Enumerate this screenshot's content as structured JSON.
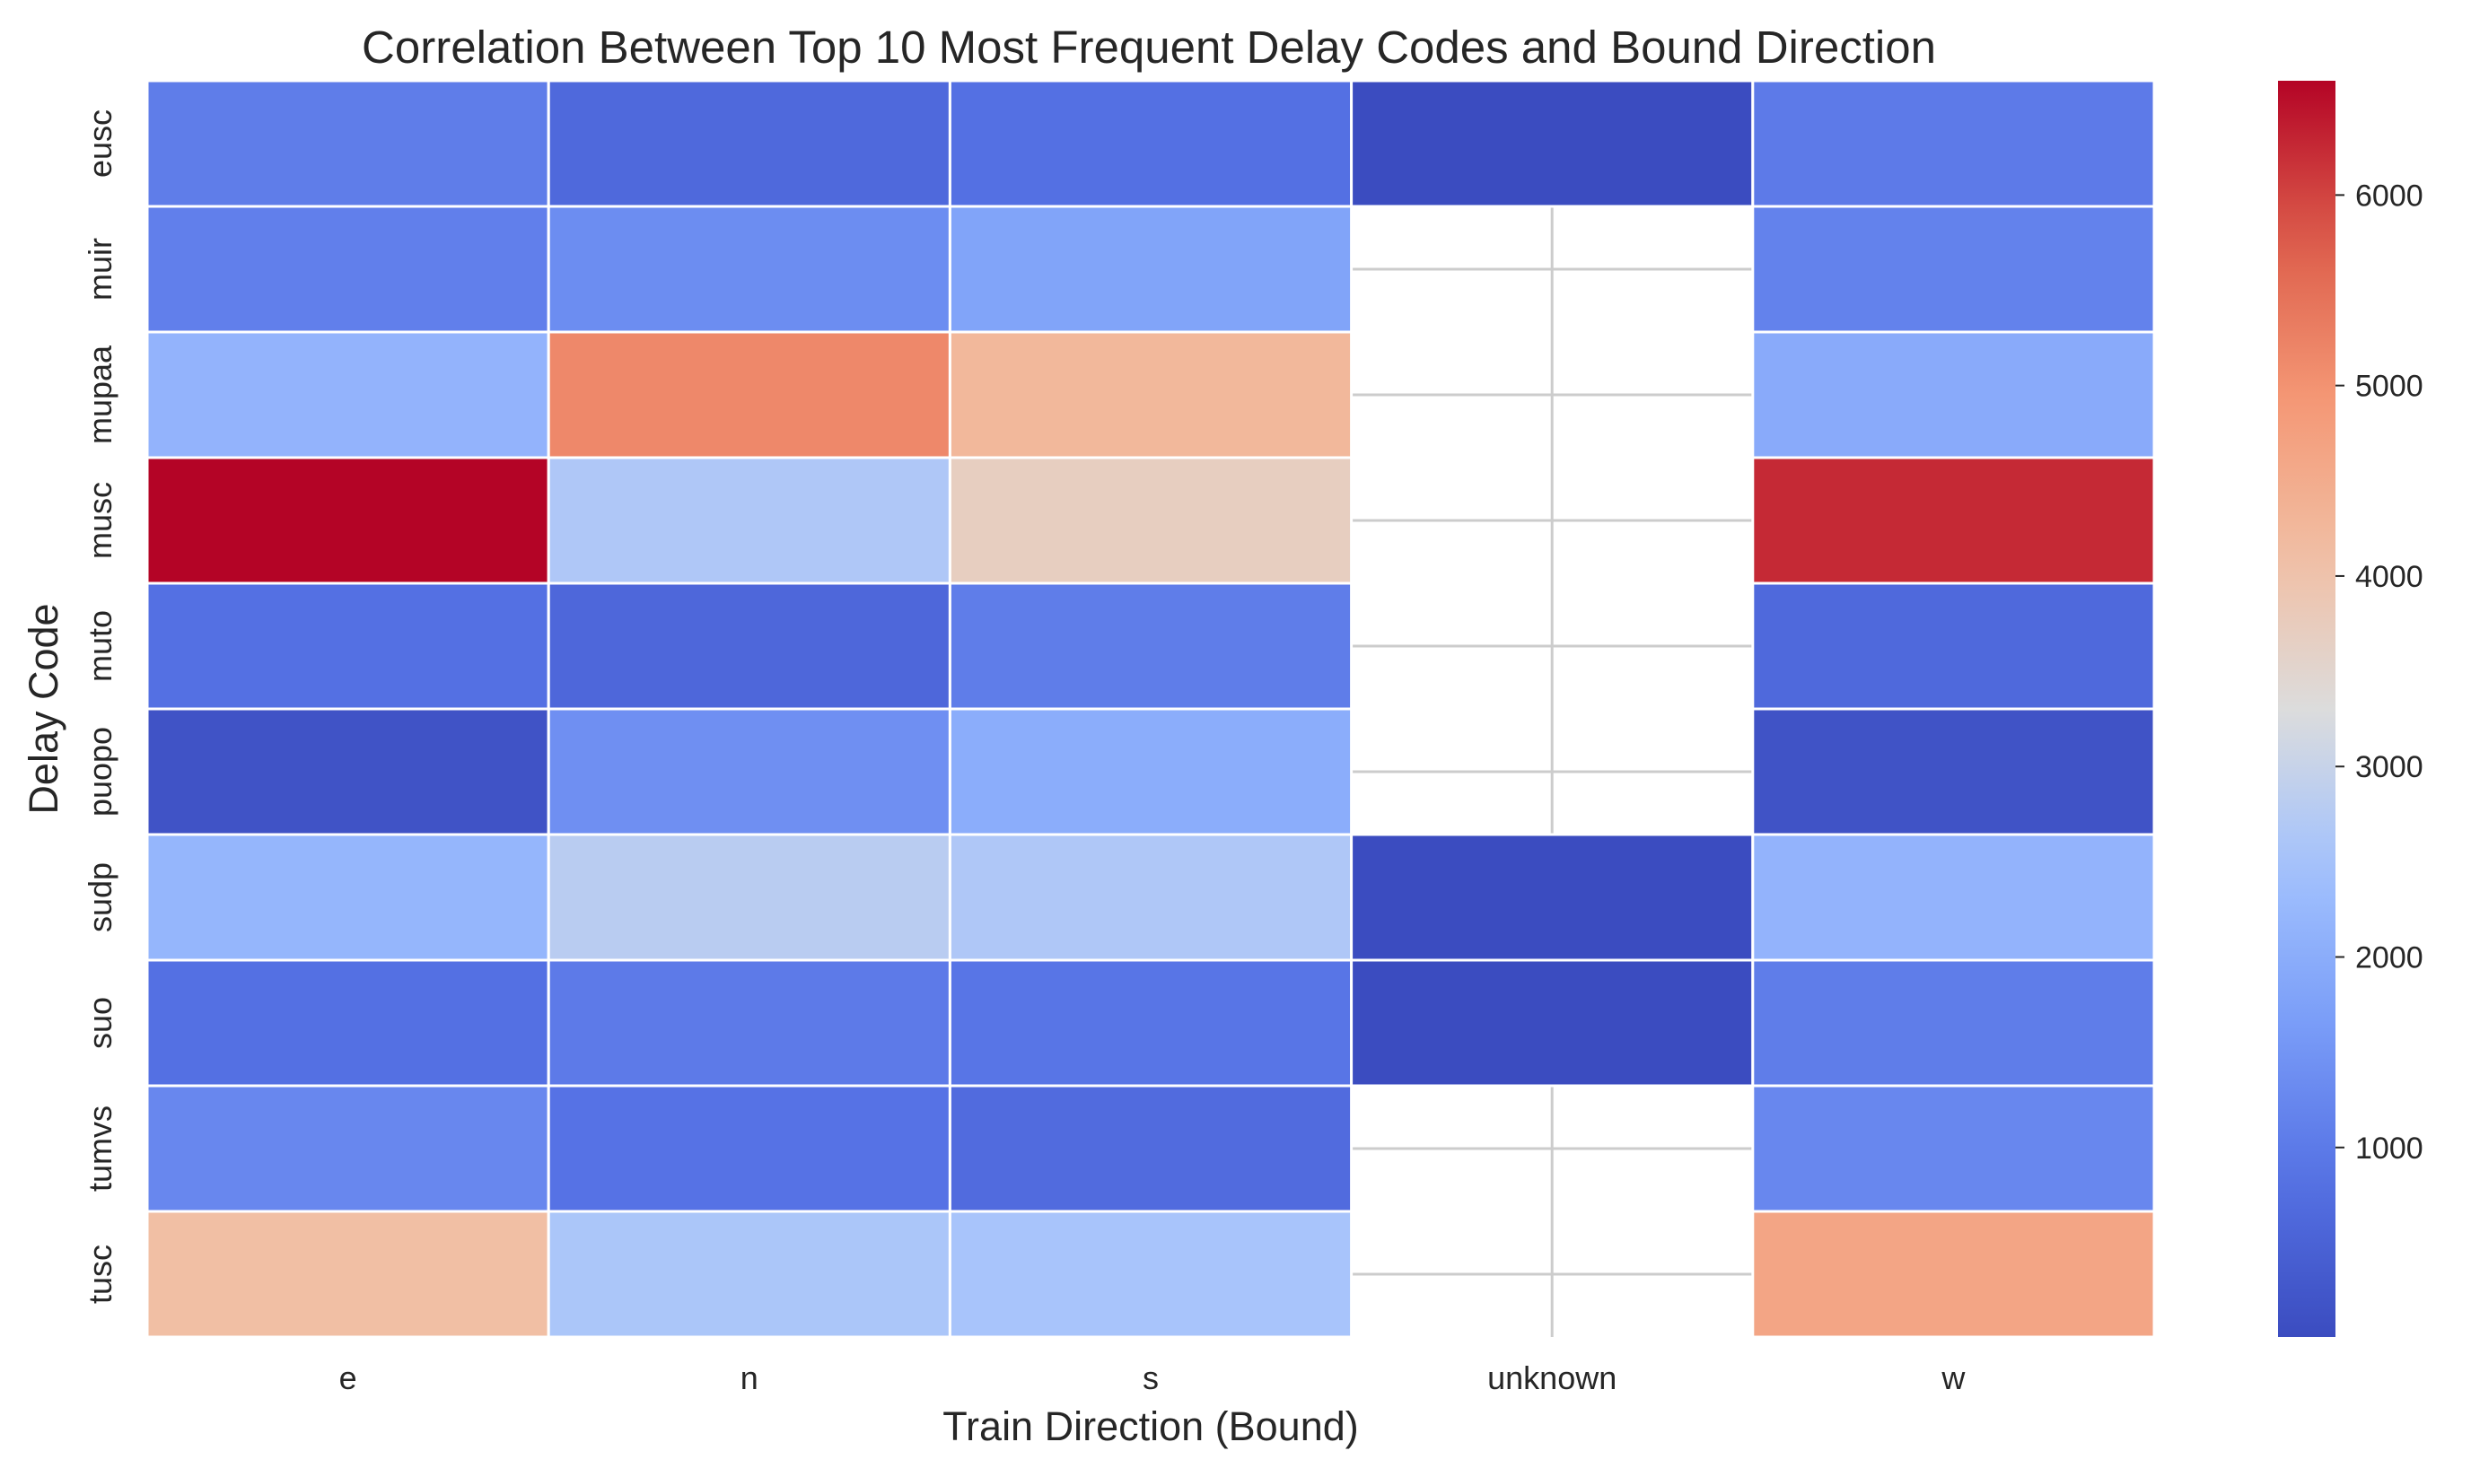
{
  "chart_data": {
    "type": "heatmap",
    "title": "Correlation Between Top 10 Most Frequent Delay Codes and Bound Direction",
    "xlabel": "Train Direction (Bound)",
    "ylabel": "Delay Code",
    "x_categories": [
      "e",
      "n",
      "s",
      "unknown",
      "w"
    ],
    "y_categories": [
      "eusc",
      "muir",
      "mupaa",
      "musc",
      "muto",
      "puopo",
      "sudp",
      "suo",
      "tumvs",
      "tusc"
    ],
    "values": [
      [
        1050,
        650,
        800,
        5,
        1000
      ],
      [
        1100,
        1350,
        1800,
        null,
        1150
      ],
      [
        2150,
        5150,
        4250,
        null,
        1950
      ],
      [
        6600,
        2650,
        3700,
        null,
        6250
      ],
      [
        800,
        600,
        1050,
        null,
        650
      ],
      [
        150,
        1400,
        2000,
        null,
        150
      ],
      [
        2200,
        2800,
        2650,
        10,
        2150
      ],
      [
        800,
        1000,
        900,
        5,
        1050
      ],
      [
        1250,
        850,
        700,
        null,
        1250
      ],
      [
        4100,
        2600,
        2550,
        null,
        4650
      ]
    ],
    "colorbar": {
      "colormap": "coolwarm",
      "range": [
        5,
        6600
      ],
      "ticks": [
        1000,
        2000,
        3000,
        4000,
        5000,
        6000
      ]
    },
    "missing_cells_blank": true,
    "grid": true
  }
}
